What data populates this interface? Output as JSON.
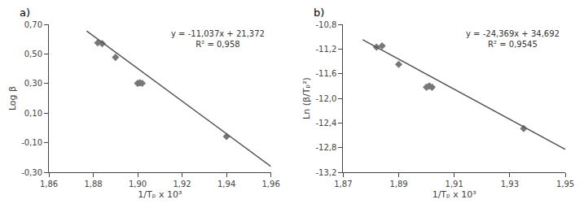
{
  "chart_data": [
    {
      "type": "scatter",
      "title": "a)",
      "xlabel": "1/Tₚ x 10³",
      "ylabel": "Log β",
      "annotations": [
        "y = -11,037x + 21,372",
        "R² = 0,958"
      ],
      "series": [
        {
          "type": "scatter",
          "marker": "diamond",
          "color": "#777777",
          "x": [
            1.882,
            1.884,
            1.89,
            1.9,
            1.901,
            1.902,
            1.94
          ],
          "values": [
            0.575,
            0.57,
            0.477,
            0.301,
            0.305,
            0.302,
            -0.058
          ]
        },
        {
          "type": "line",
          "line_style": "solid",
          "color": "#555555",
          "x": [
            1.877,
            1.96
          ],
          "values": [
            0.655551,
            -0.26052
          ]
        }
      ],
      "xlim": [
        1.86,
        1.96
      ],
      "xticks": [
        {
          "value": 1.86,
          "label": "1,86"
        },
        {
          "value": 1.88,
          "label": "1,88"
        },
        {
          "value": 1.9,
          "label": "1,90"
        },
        {
          "value": 1.92,
          "label": "1,92"
        },
        {
          "value": 1.94,
          "label": "1,94"
        },
        {
          "value": 1.96,
          "label": "1,96"
        }
      ],
      "ylim": [
        -0.3,
        0.7
      ],
      "yticks": [
        {
          "value": -0.3,
          "label": "-0,30"
        },
        {
          "value": -0.1,
          "label": "-0,10"
        },
        {
          "value": 0.1,
          "label": "0,10"
        },
        {
          "value": 0.3,
          "label": "0,30"
        },
        {
          "value": 0.5,
          "label": "0,50"
        },
        {
          "value": 0.7,
          "label": "0,70"
        }
      ],
      "grid": false
    },
    {
      "type": "scatter",
      "title": "b)",
      "xlabel": "1/Tₚ x 10³",
      "ylabel": "Ln (β/Tₚ²)",
      "annotations": [
        "y = -24,369x + 34,692",
        "R² = 0,9545"
      ],
      "series": [
        {
          "type": "scatter",
          "marker": "diamond",
          "color": "#777777",
          "x": [
            1.882,
            1.884,
            1.89,
            1.9,
            1.901,
            1.902,
            1.935
          ],
          "values": [
            -11.17,
            -11.15,
            -11.45,
            -11.82,
            -11.8,
            -11.82,
            -12.49
          ]
        },
        {
          "type": "line",
          "line_style": "solid",
          "color": "#555555",
          "x": [
            1.877,
            1.95
          ],
          "values": [
            -11.048613,
            -12.82755
          ]
        }
      ],
      "xlim": [
        1.87,
        1.95
      ],
      "xticks": [
        {
          "value": 1.87,
          "label": "1,87"
        },
        {
          "value": 1.89,
          "label": "1,89"
        },
        {
          "value": 1.91,
          "label": "1,91"
        },
        {
          "value": 1.93,
          "label": "1,93"
        },
        {
          "value": 1.95,
          "label": "1,95"
        }
      ],
      "ylim": [
        -13.2,
        -10.8
      ],
      "yticks": [
        {
          "value": -13.2,
          "label": "-13,2"
        },
        {
          "value": -12.8,
          "label": "-12,8"
        },
        {
          "value": -12.4,
          "label": "-12,4"
        },
        {
          "value": -12.0,
          "label": "-12,0"
        },
        {
          "value": -11.6,
          "label": "-11,6"
        },
        {
          "value": -11.2,
          "label": "-11,2"
        },
        {
          "value": -10.8,
          "label": "-10,8"
        }
      ],
      "grid": false
    }
  ]
}
